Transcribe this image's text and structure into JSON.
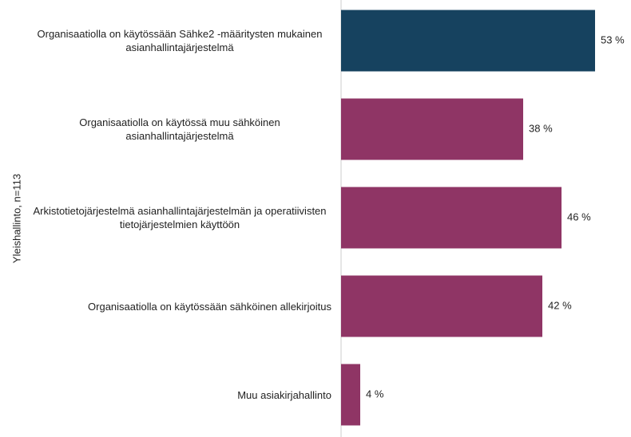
{
  "chart_data": {
    "type": "bar",
    "orientation": "horizontal",
    "y_axis_label": "Yleishallinto, n=113",
    "categories": [
      "Organisaatiolla on käytössään Sähke2 -määritysten mukainen asianhallintajärjestelmä",
      "Organisaatiolla on käytössä muu sähköinen asianhallintajärjestelmä",
      "Arkistotietojärjestelmä asianhallintajärjestelmän ja operatiivisten tietojärjestelmien käyttöön",
      "Organisaatiolla on käytössään sähköinen allekirjoitus",
      "Muu asiakirjahallinto"
    ],
    "values": [
      53,
      38,
      46,
      42,
      4
    ],
    "value_labels": [
      "53 %",
      "38 %",
      "46 %",
      "42 %",
      "4 %"
    ],
    "colors": [
      "#16425f",
      "#8f3565",
      "#8f3565",
      "#8f3565",
      "#8f3565"
    ],
    "xlim": [
      0,
      60
    ]
  }
}
